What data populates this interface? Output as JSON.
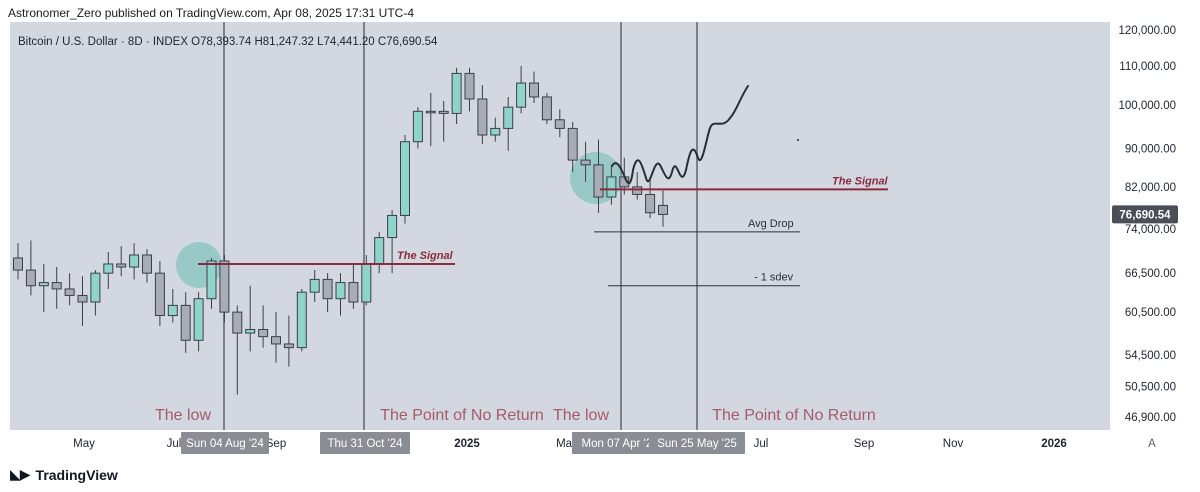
{
  "header": {
    "published_line": "Astronomer_Zero published on TradingView.com, Apr 08, 2025 17:31 UTC-4"
  },
  "ohlc_line": "Bitcoin / U.S. Dollar · 8D · INDEX  O78,393.74  H81,247.32  L74,441.20  C76,690.54",
  "brand": {
    "name": "TradingView",
    "icon": "tradingview-logo-icon"
  },
  "colors": {
    "bull_fill": "#8fd3cc",
    "bear_fill": "#a8acb6",
    "candle_outline": "#3b3f48",
    "signal_line": "#8a2a3a",
    "label_text": "#a65a6a",
    "last_price_bg": "#4a4e58",
    "highlight_circle": "#68bdb3"
  },
  "chart_data": {
    "type": "candlestick",
    "timeframe": "8D",
    "y_axis": {
      "scale": "log",
      "ticks": [
        "120,000.00",
        "110,000.00",
        "100,000.00",
        "90,000.00",
        "82,000.00",
        "74,000.00",
        "66,500.00",
        "60,500.00",
        "54,500.00",
        "50,500.00",
        "46,900.00"
      ],
      "last_price": "76,690.54",
      "currency": "USD"
    },
    "x_axis": {
      "ticks": [
        "May",
        "Jul",
        "Sep",
        "2025",
        "Mar",
        "Jul",
        "Sep",
        "Nov",
        "2026"
      ],
      "date_badges": [
        "Sun 04 Aug '24",
        "Thu 31 Oct '24",
        "Mon 07 Apr '25",
        "Sun 25 May '25"
      ],
      "corner_label": "A"
    },
    "candles": [
      {
        "o": 69000,
        "h": 71500,
        "l": 65500,
        "c": 67000
      },
      {
        "o": 67000,
        "h": 72000,
        "l": 63000,
        "c": 64500
      },
      {
        "o": 64500,
        "h": 68000,
        "l": 60500,
        "c": 65000
      },
      {
        "o": 65000,
        "h": 67500,
        "l": 61000,
        "c": 64000
      },
      {
        "o": 64000,
        "h": 66500,
        "l": 61500,
        "c": 63000
      },
      {
        "o": 63000,
        "h": 66000,
        "l": 58500,
        "c": 62000
      },
      {
        "o": 62000,
        "h": 67000,
        "l": 60000,
        "c": 66500
      },
      {
        "o": 66500,
        "h": 70000,
        "l": 64000,
        "c": 68000
      },
      {
        "o": 68000,
        "h": 71000,
        "l": 66000,
        "c": 67500
      },
      {
        "o": 67500,
        "h": 71500,
        "l": 65500,
        "c": 69500
      },
      {
        "o": 69500,
        "h": 70500,
        "l": 65000,
        "c": 66500
      },
      {
        "o": 66500,
        "h": 68500,
        "l": 58500,
        "c": 60000
      },
      {
        "o": 60000,
        "h": 64000,
        "l": 59000,
        "c": 61500
      },
      {
        "o": 61500,
        "h": 63500,
        "l": 54800,
        "c": 56500
      },
      {
        "o": 56500,
        "h": 63500,
        "l": 55000,
        "c": 62500
      },
      {
        "o": 62500,
        "h": 69000,
        "l": 61000,
        "c": 68500
      },
      {
        "o": 68500,
        "h": 69500,
        "l": 59000,
        "c": 60500
      },
      {
        "o": 60500,
        "h": 61500,
        "l": 49500,
        "c": 57500
      },
      {
        "o": 57500,
        "h": 64500,
        "l": 55000,
        "c": 58000
      },
      {
        "o": 58000,
        "h": 61500,
        "l": 55500,
        "c": 57000
      },
      {
        "o": 57000,
        "h": 60500,
        "l": 53500,
        "c": 56000
      },
      {
        "o": 56000,
        "h": 60000,
        "l": 53000,
        "c": 55500
      },
      {
        "o": 55500,
        "h": 64000,
        "l": 55000,
        "c": 63500
      },
      {
        "o": 63500,
        "h": 67000,
        "l": 62000,
        "c": 65500
      },
      {
        "o": 65500,
        "h": 66500,
        "l": 60500,
        "c": 62500
      },
      {
        "o": 62500,
        "h": 66500,
        "l": 60000,
        "c": 65000
      },
      {
        "o": 65000,
        "h": 68000,
        "l": 61000,
        "c": 62000
      },
      {
        "o": 62000,
        "h": 69500,
        "l": 61500,
        "c": 68000
      },
      {
        "o": 68000,
        "h": 73500,
        "l": 66500,
        "c": 72500
      },
      {
        "o": 72500,
        "h": 77500,
        "l": 66500,
        "c": 76500
      },
      {
        "o": 76500,
        "h": 93000,
        "l": 75000,
        "c": 91500
      },
      {
        "o": 91500,
        "h": 99500,
        "l": 90000,
        "c": 98500
      },
      {
        "o": 98500,
        "h": 103000,
        "l": 90500,
        "c": 98500
      },
      {
        "o": 98500,
        "h": 101000,
        "l": 91500,
        "c": 98000
      },
      {
        "o": 98000,
        "h": 109500,
        "l": 95500,
        "c": 108000
      },
      {
        "o": 108000,
        "h": 109500,
        "l": 98500,
        "c": 101500
      },
      {
        "o": 101500,
        "h": 105000,
        "l": 91000,
        "c": 93000
      },
      {
        "o": 93000,
        "h": 97000,
        "l": 91500,
        "c": 94500
      },
      {
        "o": 94500,
        "h": 102000,
        "l": 89500,
        "c": 99500
      },
      {
        "o": 99500,
        "h": 110000,
        "l": 98000,
        "c": 105500
      },
      {
        "o": 105500,
        "h": 108500,
        "l": 100500,
        "c": 102000
      },
      {
        "o": 102000,
        "h": 103000,
        "l": 95500,
        "c": 96500
      },
      {
        "o": 96500,
        "h": 99000,
        "l": 92500,
        "c": 94500
      },
      {
        "o": 94500,
        "h": 96000,
        "l": 85000,
        "c": 87500
      },
      {
        "o": 87500,
        "h": 91500,
        "l": 83000,
        "c": 86500
      },
      {
        "o": 86500,
        "h": 92000,
        "l": 77000,
        "c": 80000
      },
      {
        "o": 80000,
        "h": 86500,
        "l": 78500,
        "c": 84000
      },
      {
        "o": 84000,
        "h": 88000,
        "l": 80500,
        "c": 82000
      },
      {
        "o": 82000,
        "h": 85000,
        "l": 79500,
        "c": 80500
      },
      {
        "o": 80500,
        "h": 84000,
        "l": 76000,
        "c": 77000
      },
      {
        "o": 78393.74,
        "h": 81247.32,
        "l": 74441.2,
        "c": 76690.54
      }
    ],
    "annotations": [
      {
        "text": "The Signal",
        "kind": "horizontal-line",
        "price": 68000
      },
      {
        "text": "The Signal",
        "kind": "horizontal-line",
        "price": 81500
      },
      {
        "text": "Avg Drop",
        "kind": "horizontal-line",
        "price": 73500
      },
      {
        "text": "- 1 sdev",
        "kind": "horizontal-line",
        "price": 64500
      },
      {
        "text": "The low",
        "kind": "vertical-label",
        "at": "Sun 04 Aug '24"
      },
      {
        "text": "The Point of No Return",
        "kind": "vertical-label",
        "at": "Thu 31 Oct '24"
      },
      {
        "text": "The low",
        "kind": "vertical-label",
        "at": "Mon 07 Apr '25"
      },
      {
        "text": "The Point of No Return",
        "kind": "vertical-label",
        "at": "Sun 25 May '25"
      }
    ],
    "projection_path": "hand-drawn oscillating path rising from ~78,000 to ~105,000"
  }
}
